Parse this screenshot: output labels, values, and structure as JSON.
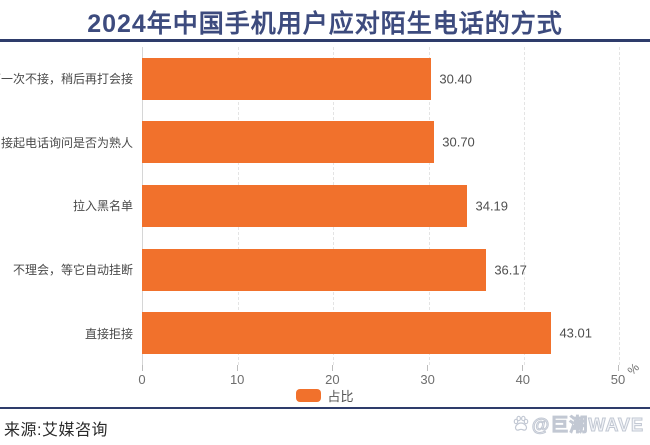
{
  "title": "2024年中国手机用户应对陌生电话的方式",
  "chart_data": {
    "type": "bar",
    "orientation": "horizontal",
    "title": "2024年中国手机用户应对陌生电话的方式",
    "categories": [
      "第一次不接，稍后再打会接",
      "接起电话询问是否为熟人",
      "拉入黑名单",
      "不理会，等它自动挂断",
      "直接拒接"
    ],
    "values": [
      30.4,
      30.7,
      34.19,
      36.17,
      43.01
    ],
    "value_labels": [
      "30.40",
      "30.70",
      "34.19",
      "36.17",
      "43.01"
    ],
    "legend": "占比",
    "legend_position": "bottom-center",
    "x_ticks": [
      0,
      10,
      20,
      30,
      40,
      50
    ],
    "x_unit": "%",
    "xlim": [
      0,
      50
    ],
    "grid": "vertical-dashed",
    "bar_color": "#F1712C"
  },
  "colors": {
    "bar": "#F1712C",
    "title": "#3D4B7E",
    "rule": "#2E3C6B",
    "grid": "#E4E4E4",
    "axis_line": "#D6D6D6",
    "tick_label": "#6E6E6E",
    "category_label": "#4A4A4A",
    "value_label": "#4F4F4F",
    "watermark": "#C2C8D3"
  },
  "footer": {
    "source": "来源:艾媒咨询",
    "watermark": "@巨潮WAVE"
  }
}
